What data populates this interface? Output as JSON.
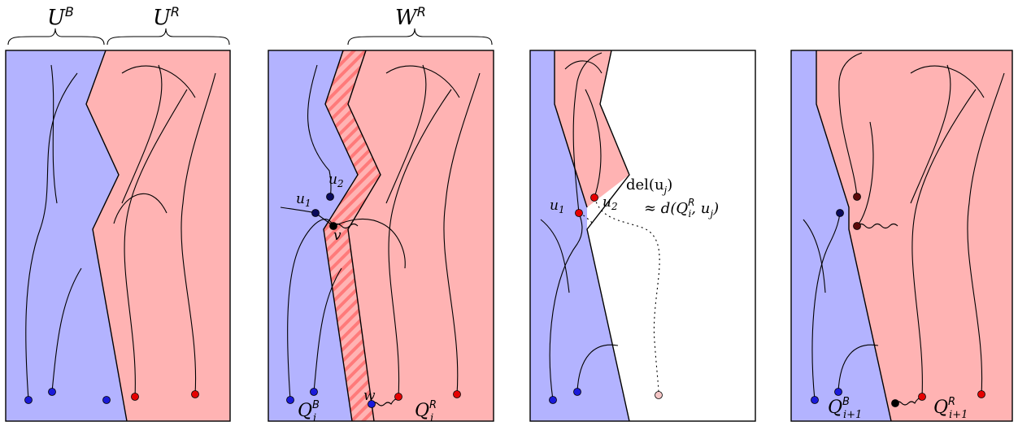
{
  "colors": {
    "blue_region": "#b3b3ff",
    "red_region": "#ffb3b3",
    "stripe": "#ff7a7a",
    "blue_dot": "#1a1ad9",
    "red_dot": "#e60000",
    "dark_red_dot": "#5a0a0a",
    "pale_dot": "#f5c6c6",
    "black": "#000000"
  },
  "panel1": {
    "label_blue": "U",
    "label_blue_sup": "B",
    "label_red": "U",
    "label_red_sup": "R"
  },
  "panel2": {
    "label_top": "W",
    "label_top_sup": "R",
    "u1": "u",
    "u1_sub": "1",
    "u2": "u",
    "u2_sub": "2",
    "v": "v",
    "w": "w",
    "q_blue": "Q",
    "q_blue_sup": "B",
    "q_blue_sub": "i",
    "q_red": "Q",
    "q_red_sup": "R",
    "q_red_sub": "i"
  },
  "panel3": {
    "u1": "u",
    "u1_sub": "1",
    "u2": "u",
    "u2_sub": "2",
    "del_line1": "del(u",
    "del_line1_sub": "j",
    "del_line1_end": ")",
    "del_line2_prefix": "≈ d(Q",
    "del_line2_sup": "R",
    "del_line2_sub": "i",
    "del_line2_suffix": ", u",
    "del_line2_sub2": "j",
    "del_line2_end": ")"
  },
  "panel4": {
    "q_blue": "Q",
    "q_blue_sup": "B",
    "q_blue_sub": "i+1",
    "q_red": "Q",
    "q_red_sup": "R",
    "q_red_sub": "i+1"
  }
}
